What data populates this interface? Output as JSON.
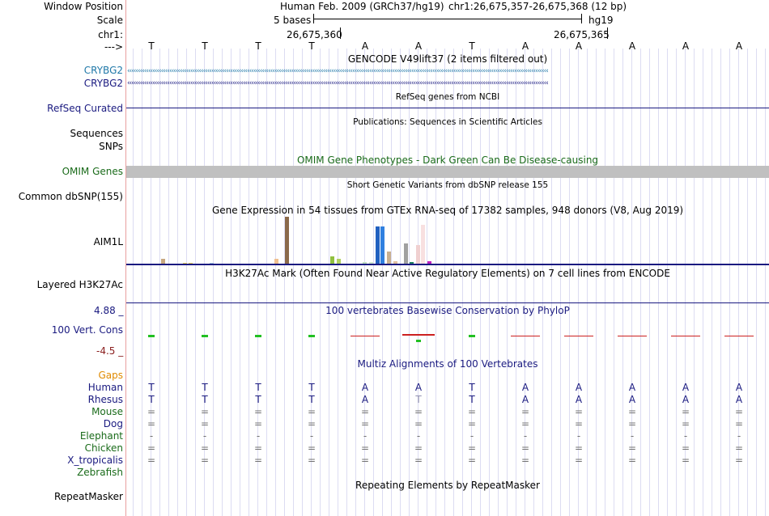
{
  "header": {
    "window_position_label": "Window Position",
    "scale_label": "Scale",
    "chrom_label": "chr1:",
    "strand_label": "--->",
    "assembly_title": "Human Feb. 2009 (GRCh37/hg19)",
    "coords": "chr1:26,675,357-26,675,368 (12 bp)",
    "scale_text": "5 bases",
    "db": "hg19",
    "tick1": "26,675,360",
    "tick2": "26,675,365"
  },
  "sequence": [
    "T",
    "T",
    "T",
    "T",
    "A",
    "A",
    "T",
    "A",
    "A",
    "A",
    "A",
    "A"
  ],
  "tracks": {
    "gencode": {
      "title": "GENCODE V49lift37 (2 items filtered out)",
      "items": [
        "CRYBG2",
        "CRYBG2"
      ]
    },
    "refseq": {
      "label": "RefSeq Curated",
      "title": "RefSeq genes from NCBI"
    },
    "publications": {
      "label": "Sequences",
      "title": "Publications: Sequences in Scientific Articles"
    },
    "snps": {
      "label": "SNPs"
    },
    "omim": {
      "label": "OMIM Genes",
      "title": "OMIM Gene Phenotypes - Dark Green Can Be Disease-causing"
    },
    "dbsnp": {
      "label": "Common dbSNP(155)",
      "title": "Short Genetic Variants from dbSNP release 155"
    },
    "gtex": {
      "label": "AIM1L",
      "title": "Gene Expression in 54 tissues from GTEx RNA-seq of 17382 samples, 948 donors (V8, Aug 2019)"
    },
    "h3k27ac": {
      "label": "Layered H3K27Ac",
      "title": "H3K27Ac Mark (Often Found Near Active Regulatory Elements) on 7 cell lines from ENCODE"
    },
    "cons": {
      "label": "100 Vert. Cons",
      "max_label": "4.88 _",
      "min_label": "-4.5 _",
      "title": "100 vertebrates Basewise Conservation by PhyloP"
    },
    "multiz": {
      "title": "Multiz Alignments of 100 Vertebrates",
      "gaps_label": "Gaps",
      "species": [
        {
          "name": "Human",
          "row": [
            "T",
            "T",
            "T",
            "T",
            "A",
            "A",
            "T",
            "A",
            "A",
            "A",
            "A",
            "A"
          ]
        },
        {
          "name": "Rhesus",
          "row": [
            "T",
            "T",
            "T",
            "T",
            "A",
            "T",
            "T",
            "A",
            "A",
            "A",
            "A",
            "A"
          ]
        },
        {
          "name": "Mouse",
          "row": [
            "=",
            "=",
            "=",
            "=",
            "=",
            "=",
            "=",
            "=",
            "=",
            "=",
            "=",
            "="
          ]
        },
        {
          "name": "Dog",
          "row": [
            "=",
            "=",
            "=",
            "=",
            "=",
            "=",
            "=",
            "=",
            "=",
            "=",
            "=",
            "="
          ]
        },
        {
          "name": "Elephant",
          "row": [
            "-",
            "-",
            "-",
            "-",
            "-",
            "-",
            "-",
            "-",
            "-",
            "-",
            "-",
            "-"
          ]
        },
        {
          "name": "Chicken",
          "row": [
            "=",
            "=",
            "=",
            "=",
            "=",
            "=",
            "=",
            "=",
            "=",
            "=",
            "=",
            "="
          ]
        },
        {
          "name": "X_tropicalis",
          "row": [
            "=",
            "=",
            "=",
            "=",
            "=",
            "=",
            "=",
            "=",
            "=",
            "=",
            "=",
            "="
          ]
        },
        {
          "name": "Zebrafish",
          "row": []
        }
      ]
    },
    "repeatmasker": {
      "label": "RepeatMasker",
      "title": "Repeating Elements by RepeatMasker"
    }
  },
  "colors": {
    "navy": "#1a1a80",
    "teal": "#1f78a8",
    "omim_green": "#1a6b1a",
    "gaps_orange": "#e08a00",
    "cons_pos": "#22c022",
    "cons_neg": "#cc2020"
  }
}
